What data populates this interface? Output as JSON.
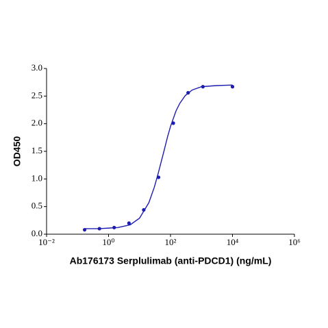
{
  "chart_data": {
    "type": "scatter",
    "x_label": "Ab176173 Serplulimab (anti-PDCD1) (ng/mL)",
    "y_label": "OD450",
    "log_x": true,
    "xlim": [
      0.01,
      1000000
    ],
    "xticks": [
      {
        "value": 0.01,
        "label": "10⁻²"
      },
      {
        "value": 1,
        "label": "10⁰"
      },
      {
        "value": 100,
        "label": "10²"
      },
      {
        "value": 10000,
        "label": "10⁴"
      },
      {
        "value": 1000000,
        "label": "10⁶"
      }
    ],
    "ylim": [
      0,
      3
    ],
    "yticks": [
      {
        "value": 0,
        "label": "0.0"
      },
      0.5,
      {
        "value": 1,
        "label": "1.0"
      },
      1.5,
      {
        "value": 2,
        "label": "2.0"
      },
      2.5,
      {
        "value": 3,
        "label": "3.0"
      }
    ],
    "series": [
      {
        "color": "#1c1cb0",
        "x": [
          0.169,
          0.508,
          1.52,
          4.57,
          13.7,
          41.2,
          123,
          370,
          1111,
          10000
        ],
        "values": [
          0.08,
          0.1,
          0.12,
          0.2,
          0.44,
          1.03,
          2.01,
          2.56,
          2.67,
          2.67
        ]
      }
    ],
    "fit": {
      "color": "#1c1cb0",
      "x": [
        0.17,
        0.5,
        1,
        2,
        5,
        10,
        20,
        30,
        40,
        50,
        60,
        80,
        100,
        150,
        200,
        300,
        500,
        1000,
        3000,
        10000
      ],
      "values": [
        0.1,
        0.1,
        0.11,
        0.12,
        0.17,
        0.29,
        0.57,
        0.85,
        1.1,
        1.31,
        1.48,
        1.76,
        1.95,
        2.23,
        2.37,
        2.51,
        2.61,
        2.67,
        2.69,
        2.7
      ]
    }
  }
}
